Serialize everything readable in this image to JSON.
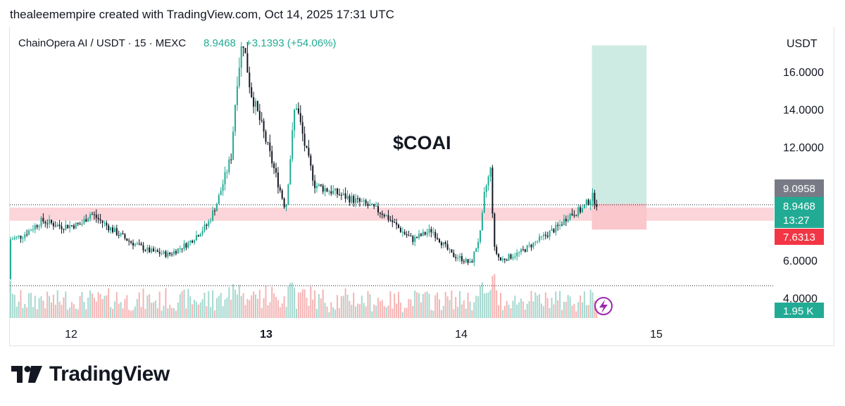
{
  "caption": "thealeemempire created with TradingView.com, Oct 14, 2025 17:31 UTC",
  "brand": {
    "logo_icon": "tradingview-logo-icon",
    "name": "TradingView"
  },
  "legend": {
    "symbol": "ChainOpera AI / USDT · 15 · MEXC",
    "price": "8.9468",
    "change": "+3.1393 (+54.06%)"
  },
  "annotation": "$COAI",
  "axis": {
    "currency": "USDT",
    "price_labels": [
      "16.0000",
      "14.0000",
      "12.0000",
      "6.0000",
      "4.0000"
    ]
  },
  "badges": {
    "target": "9.0958",
    "price": "8.9468",
    "countdown": "13:27",
    "stop": "7.6313",
    "volume": "1.95 K"
  },
  "colors": {
    "up": "#22ab94",
    "down": "#131722",
    "vol_up": "#a5d8cf",
    "vol_down": "#f5b4b4",
    "zone": "#f9c7cc",
    "target_zone": "#cdebe3",
    "stop_zone": "#f9c7cc",
    "badge_grey": "#787b86",
    "badge_red": "#f23645",
    "badge_green": "#22ab94",
    "bolt": "#9c27b0"
  },
  "chart_data": {
    "type": "candlestick",
    "symbol": "ChainOpera AI / USDT",
    "interval": "15",
    "exchange": "MEXC",
    "ylim": [
      3.4,
      18.0
    ],
    "x_ticks": [
      "12",
      "13",
      "14",
      "15"
    ],
    "y_ticks": [
      4,
      6,
      12,
      14,
      16
    ],
    "last_price": 8.9468,
    "price_line": 8.9468,
    "support_zone": [
      8.1,
      8.8
    ],
    "long_position": {
      "entry": 9.0,
      "target": 17.4,
      "stop": 7.6313,
      "target_label": 9.0958
    },
    "volume_last": "1.95 K",
    "close_path": [
      [
        11.5,
        5.0
      ],
      [
        11.55,
        6.6
      ],
      [
        11.65,
        7.0
      ],
      [
        11.75,
        7.3
      ],
      [
        11.85,
        8.1
      ],
      [
        11.95,
        7.8
      ],
      [
        12.05,
        7.9
      ],
      [
        12.1,
        8.5
      ],
      [
        12.2,
        7.7
      ],
      [
        12.3,
        7.0
      ],
      [
        12.4,
        6.5
      ],
      [
        12.5,
        6.3
      ],
      [
        12.6,
        6.9
      ],
      [
        12.7,
        7.9
      ],
      [
        12.75,
        9.1
      ],
      [
        12.82,
        11.5
      ],
      [
        12.85,
        15.5
      ],
      [
        12.88,
        17.8
      ],
      [
        12.92,
        15.0
      ],
      [
        12.98,
        13.0
      ],
      [
        13.05,
        10.5
      ],
      [
        13.1,
        8.7
      ],
      [
        13.15,
        14.5
      ],
      [
        13.2,
        12.0
      ],
      [
        13.25,
        10.0
      ],
      [
        13.35,
        9.6
      ],
      [
        13.5,
        9.0
      ],
      [
        13.6,
        8.5
      ],
      [
        13.7,
        7.5
      ],
      [
        13.75,
        7.1
      ],
      [
        13.85,
        7.6
      ],
      [
        13.95,
        6.3
      ],
      [
        14.0,
        6.1
      ],
      [
        14.05,
        5.8
      ],
      [
        14.1,
        7.5
      ],
      [
        14.12,
        9.6
      ],
      [
        14.15,
        10.8
      ],
      [
        14.17,
        6.6
      ],
      [
        14.2,
        6.0
      ],
      [
        14.3,
        6.4
      ],
      [
        14.4,
        7.1
      ],
      [
        14.5,
        7.8
      ],
      [
        14.55,
        8.4
      ],
      [
        14.62,
        8.7
      ],
      [
        14.67,
        9.4
      ],
      [
        14.7,
        8.95
      ]
    ]
  }
}
